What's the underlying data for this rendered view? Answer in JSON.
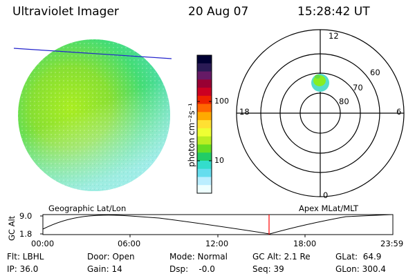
{
  "header": {
    "instrument": "Ultraviolet Imager",
    "date": "20 Aug 07",
    "time": "15:28:42 UT"
  },
  "colorbar": {
    "unit_label": "photon cm⁻²s⁻¹",
    "tick_labels": [
      "100",
      "10"
    ],
    "colors": [
      "#000033",
      "#2a1a55",
      "#661a66",
      "#990033",
      "#cc0022",
      "#ee2200",
      "#ff6600",
      "#ffaa00",
      "#ffe033",
      "#eeff33",
      "#bbee22",
      "#66dd22",
      "#22cc66",
      "#33ddcc",
      "#66ddee",
      "#bbeeff",
      "#eeffff"
    ]
  },
  "polar_plot": {
    "mlt_labels": [
      "12",
      "18",
      "6",
      "0"
    ],
    "lat_labels": [
      "60",
      "70",
      "80"
    ]
  },
  "altitude_plot": {
    "left_title": "Geographic Lat/Lon",
    "right_title": "Apex MLat/MLT",
    "ylabel": "GC Alt",
    "y_ticks": [
      "9.0",
      "1.8"
    ],
    "x_ticks": [
      "00:00",
      "06:00",
      "12:00",
      "18:00",
      "23:59"
    ],
    "current_time_marker_color": "#ff0000"
  },
  "info": {
    "filter": "Flt: LBHL",
    "ip": "IP: 36.0",
    "door": "Door: Open",
    "gain": "Gain: 14",
    "mode": "Mode: Normal",
    "dsp": "Dsp:    -0.0",
    "gc_alt": "GC Alt: 2.1 Re",
    "seq": "Seq: 39",
    "glat": "GLat:  64.9",
    "glon": "GLon: 300.4"
  }
}
